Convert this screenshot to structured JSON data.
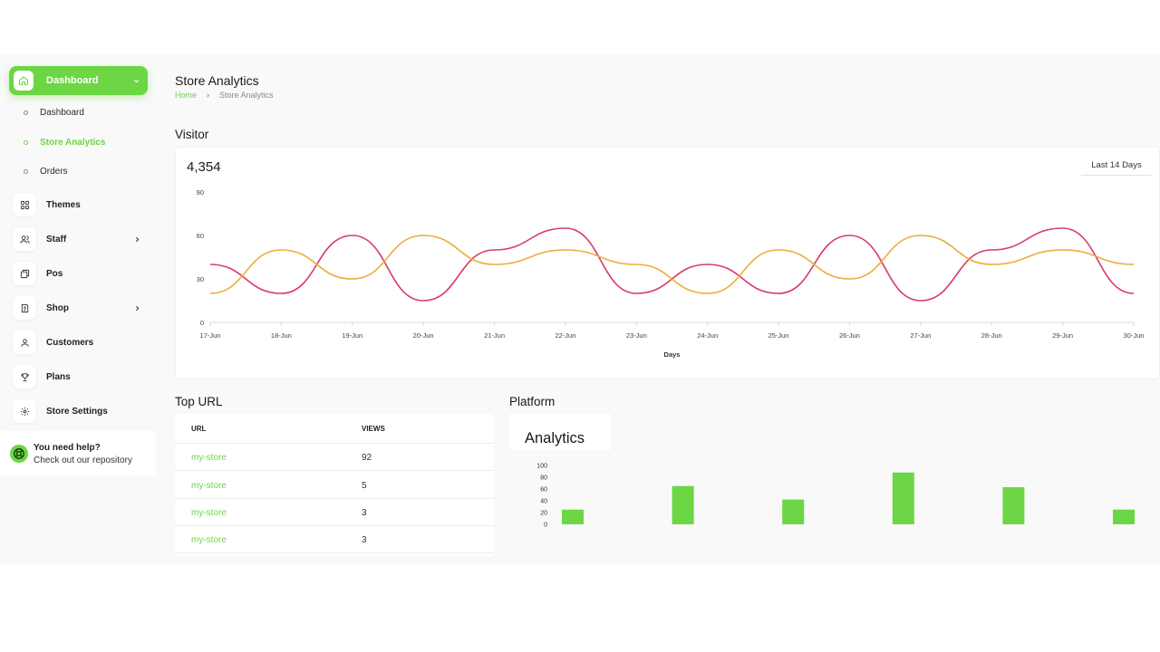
{
  "sidebar": {
    "active": {
      "label": "Dashboard",
      "icon": "home-icon"
    },
    "sub_items": [
      {
        "label": "Dashboard",
        "active": false
      },
      {
        "label": "Store Analytics",
        "active": true
      },
      {
        "label": "Orders",
        "active": false
      }
    ],
    "items": [
      {
        "label": "Themes",
        "icon": "grid-icon",
        "has_chevron": false
      },
      {
        "label": "Staff",
        "icon": "users-icon",
        "has_chevron": true
      },
      {
        "label": "Pos",
        "icon": "pos-icon",
        "has_chevron": false
      },
      {
        "label": "Shop",
        "icon": "shop-icon",
        "has_chevron": true
      },
      {
        "label": "Customers",
        "icon": "user-icon",
        "has_chevron": false
      },
      {
        "label": "Plans",
        "icon": "trophy-icon",
        "has_chevron": false
      },
      {
        "label": "Store Settings",
        "icon": "gear-icon",
        "has_chevron": false
      }
    ],
    "help": {
      "title": "You need help?",
      "subtitle": "Check out our repository",
      "icon": "lifebuoy-icon"
    }
  },
  "header": {
    "title": "Store Analytics",
    "breadcrumb": {
      "home": "Home",
      "current": "Store Analytics"
    }
  },
  "visitor": {
    "section_title": "Visitor",
    "count": "4,354",
    "range_label": "Last 14 Days"
  },
  "top_url": {
    "section_title": "Top URL",
    "columns": [
      "URL",
      "VIEWS"
    ],
    "rows": [
      {
        "url": "my-store",
        "views": "92"
      },
      {
        "url": "my-store",
        "views": "5"
      },
      {
        "url": "my-store",
        "views": "3"
      },
      {
        "url": "my-store",
        "views": "3"
      }
    ]
  },
  "platform": {
    "section_title": "Platform",
    "card_title": "Analytics"
  },
  "colors": {
    "accent": "#6cd645",
    "line_pink": "#d63a6b",
    "line_orange": "#e9ad3a"
  },
  "chart_data": [
    {
      "type": "line",
      "xlabel": "Days",
      "ylabel": "",
      "ylim": [
        0,
        90
      ],
      "yticks": [
        0,
        30,
        60,
        90
      ],
      "categories": [
        "17-Jun",
        "18-Jun",
        "19-Jun",
        "20-Jun",
        "21-Jun",
        "22-Jun",
        "23-Jun",
        "24-Jun",
        "25-Jun",
        "26-Jun",
        "27-Jun",
        "28-Jun",
        "29-Jun",
        "30-Jun"
      ],
      "series": [
        {
          "values": [
            40,
            20,
            60,
            15,
            50,
            65,
            20,
            40,
            20,
            60,
            15,
            50,
            65,
            20
          ],
          "color": "#d63a6b"
        },
        {
          "values": [
            20,
            50,
            30,
            60,
            40,
            50,
            40,
            20,
            50,
            30,
            60,
            40,
            50,
            40
          ],
          "color": "#e9ad3a"
        }
      ],
      "grid": false
    },
    {
      "type": "bar",
      "ylim": [
        0,
        100
      ],
      "yticks": [
        0,
        20,
        40,
        60,
        80,
        100
      ],
      "values": [
        25,
        65,
        42,
        88,
        63,
        25
      ],
      "color": "#6cd645",
      "grid": false
    }
  ]
}
